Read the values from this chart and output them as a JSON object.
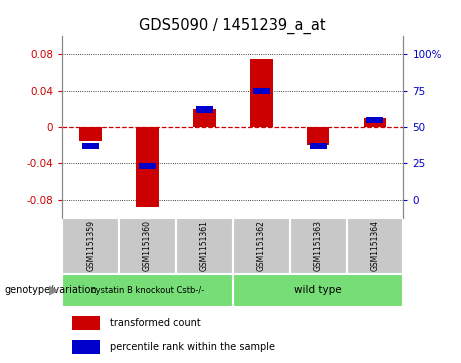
{
  "title": "GDS5090 / 1451239_a_at",
  "samples": [
    "GSM1151359",
    "GSM1151360",
    "GSM1151361",
    "GSM1151362",
    "GSM1151363",
    "GSM1151364"
  ],
  "red_values": [
    -0.015,
    -0.088,
    0.02,
    0.075,
    -0.02,
    0.01
  ],
  "blue_percentiles": [
    37,
    23,
    62,
    75,
    37,
    55
  ],
  "group1_label": "cystatin B knockout Cstb-/-",
  "group2_label": "wild type",
  "group_color": "#77DD77",
  "group_label_prefix": "genotype/variation",
  "ylim": [
    -0.1,
    0.1
  ],
  "yticks_left": [
    -0.08,
    -0.04,
    0.0,
    0.04,
    0.08
  ],
  "yticks_right": [
    0,
    25,
    50,
    75,
    100
  ],
  "bar_width": 0.4,
  "blue_bar_width": 0.3,
  "red_color": "#CC0000",
  "blue_color": "#0000CC",
  "zero_line_color": "#CC0000",
  "grid_color": "#000000",
  "sample_bg_color": "#C8C8C8",
  "legend_red_label": "transformed count",
  "legend_blue_label": "percentile rank within the sample"
}
